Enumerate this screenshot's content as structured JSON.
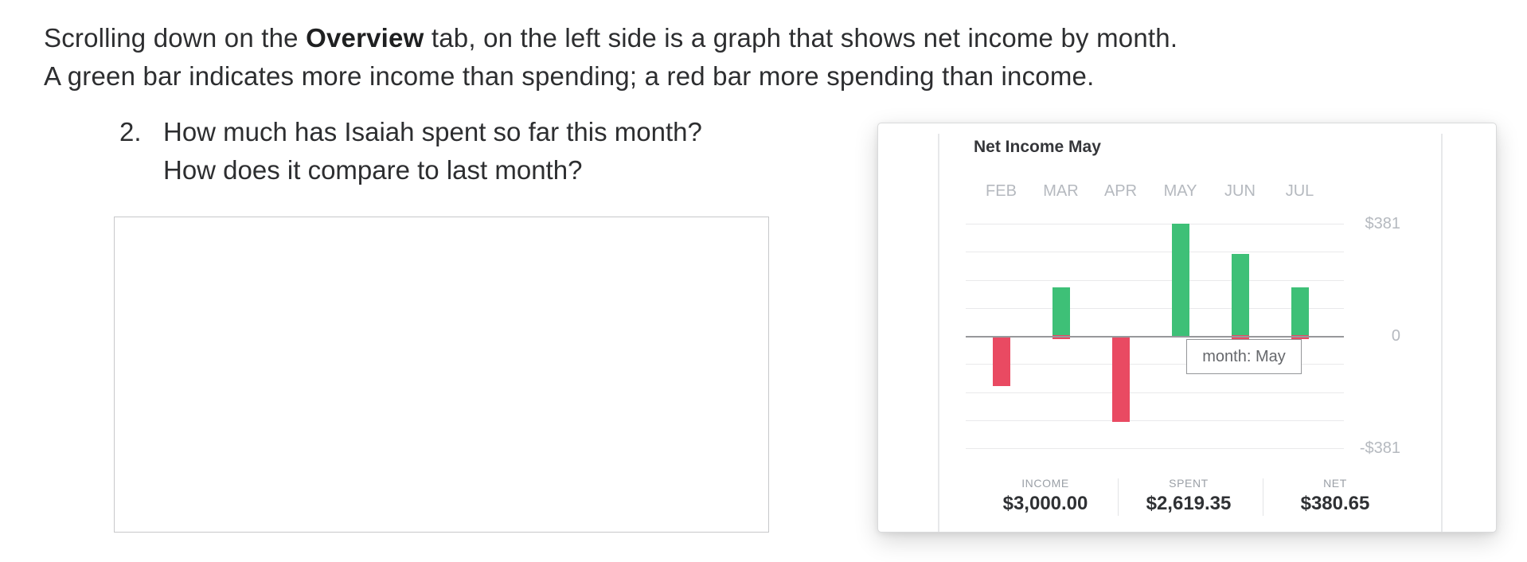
{
  "page": {
    "intro_line1_pre": "Scrolling down on the ",
    "intro_bold": "Overview",
    "intro_line1_post": " tab, on the left side is a graph that shows net income by month.",
    "intro_line2": "A green bar indicates more income than spending; a red bar more spending than income.",
    "question_number": "2.",
    "question_line1": "How much has Isaiah spent so far this month?",
    "question_line2": "How does it compare to last month?"
  },
  "card": {
    "title": "Net Income May",
    "tooltip_text": "month: May",
    "stats": [
      {
        "label": "INCOME",
        "value": "$3,000.00"
      },
      {
        "label": "SPENT",
        "value": "$2,619.35"
      },
      {
        "label": "NET",
        "value": "$380.65"
      }
    ]
  },
  "chart_data": {
    "type": "bar",
    "title": "Net Income May",
    "categories": [
      "FEB",
      "MAR",
      "APR",
      "MAY",
      "JUN",
      "JUL"
    ],
    "values": [
      -169,
      164,
      -292,
      380.65,
      278,
      164
    ],
    "ylim": [
      -381,
      381
    ],
    "ytick_labels": [
      "$381",
      "0",
      "-$381"
    ],
    "xlabel": "",
    "ylabel": "",
    "grid": true,
    "legend": "none",
    "positive_color": "#3ec077",
    "negative_color": "#e94a62",
    "tiny_negative_marker_months": [
      "MAR",
      "JUN",
      "JUL"
    ],
    "tooltip": {
      "text": "month: May",
      "month": "MAY"
    }
  },
  "colors": {
    "grid": "#e9e9eb",
    "zero_line": "#97989b",
    "axis_text": "#b5b9bf",
    "title_text": "#35363a",
    "stat_label": "#9ba0a7",
    "stat_value": "#2f3134",
    "card_border": "#d9dadb"
  }
}
